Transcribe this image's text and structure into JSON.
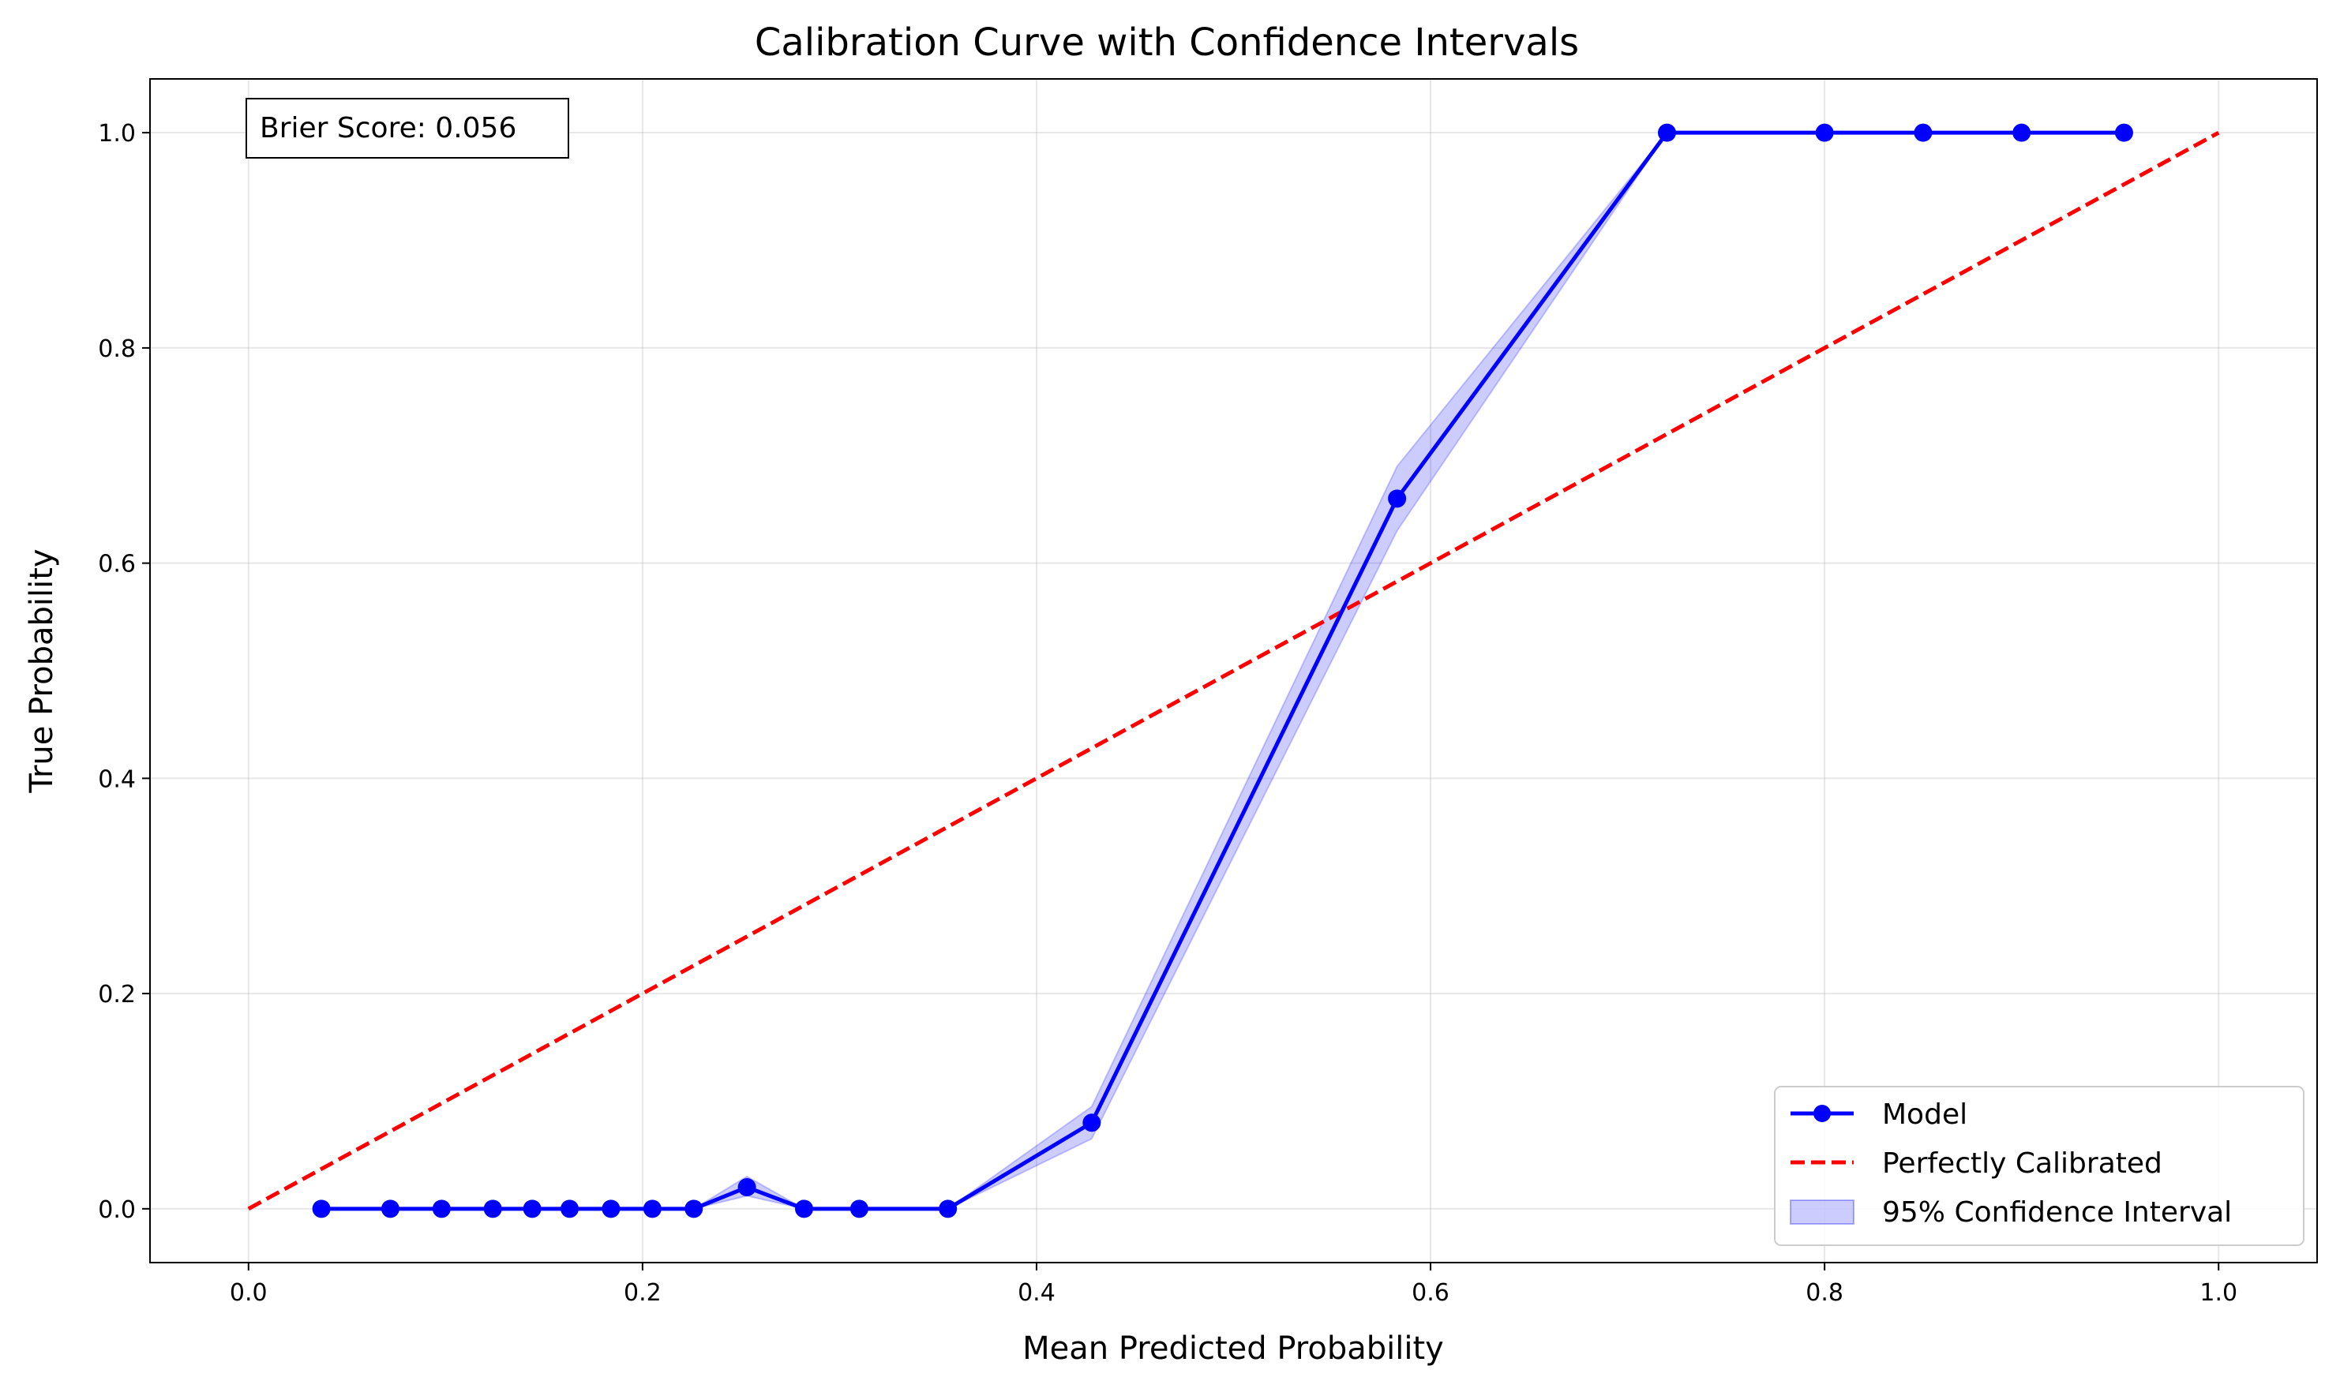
{
  "chart_data": {
    "type": "line",
    "title": "Calibration Curve with Confidence Intervals",
    "xlabel": "Mean Predicted Probability",
    "ylabel": "True Probability",
    "xlim": [
      -0.05,
      1.05
    ],
    "ylim": [
      -0.05,
      1.05
    ],
    "xticks": [
      0.0,
      0.2,
      0.4,
      0.6,
      0.8,
      1.0
    ],
    "yticks": [
      0.0,
      0.2,
      0.4,
      0.6,
      0.8,
      1.0
    ],
    "xtick_labels": [
      "0.0",
      "0.2",
      "0.4",
      "0.6",
      "0.8",
      "1.0"
    ],
    "ytick_labels": [
      "0.0",
      "0.2",
      "0.4",
      "0.6",
      "0.8",
      "1.0"
    ],
    "grid": true,
    "legend_position": "lower-right",
    "annotation": "Brier Score: 0.056",
    "series": [
      {
        "name": "Model",
        "style": "line-with-markers",
        "color": "#0000ff",
        "x": [
          0.037,
          0.072,
          0.098,
          0.124,
          0.144,
          0.163,
          0.184,
          0.205,
          0.226,
          0.253,
          0.282,
          0.31,
          0.355,
          0.428,
          0.583,
          0.72,
          0.8,
          0.85,
          0.9,
          0.952
        ],
        "y": [
          0.0,
          0.0,
          0.0,
          0.0,
          0.0,
          0.0,
          0.0,
          0.0,
          0.0,
          0.02,
          0.0,
          0.0,
          0.0,
          0.08,
          0.66,
          1.0,
          1.0,
          1.0,
          1.0,
          1.0
        ]
      },
      {
        "name": "Perfectly Calibrated",
        "style": "dashed-line",
        "color": "#ff0000",
        "x": [
          0.0,
          1.0
        ],
        "y": [
          0.0,
          1.0
        ]
      },
      {
        "name": "95% Confidence Interval",
        "style": "band",
        "color": "#0000ff",
        "x": [
          0.037,
          0.072,
          0.098,
          0.124,
          0.144,
          0.163,
          0.184,
          0.205,
          0.226,
          0.253,
          0.282,
          0.31,
          0.355,
          0.428,
          0.583,
          0.72,
          0.8,
          0.85,
          0.9,
          0.952
        ],
        "lower": [
          0.0,
          0.0,
          0.0,
          0.0,
          0.0,
          0.0,
          0.0,
          0.0,
          0.0,
          0.012,
          0.0,
          0.0,
          0.0,
          0.065,
          0.63,
          1.0,
          1.0,
          1.0,
          1.0,
          1.0
        ],
        "upper": [
          0.0,
          0.0,
          0.0,
          0.0,
          0.0,
          0.0,
          0.0,
          0.0,
          0.0,
          0.03,
          0.0,
          0.0,
          0.0,
          0.095,
          0.69,
          1.0,
          1.0,
          1.0,
          1.0,
          1.0
        ]
      }
    ]
  }
}
